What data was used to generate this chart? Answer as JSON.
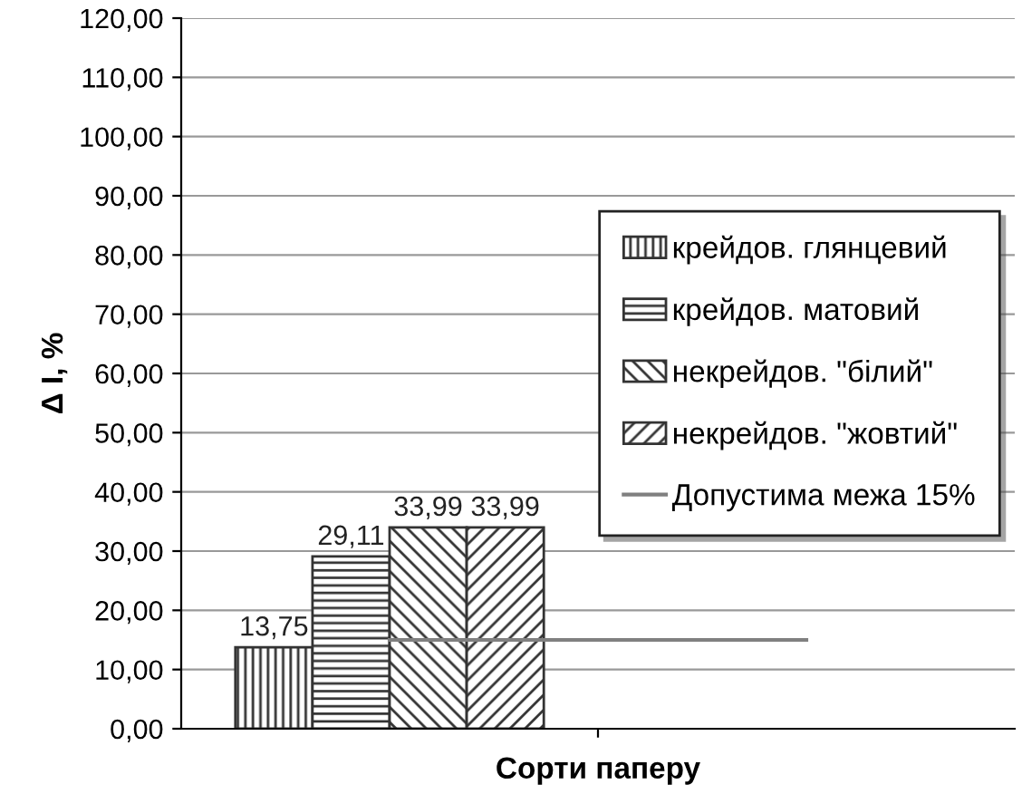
{
  "chart_data": {
    "type": "bar",
    "xlabel": "Сорти паперу",
    "ylabel": "Δ I, %",
    "categories": [
      null,
      null
    ],
    "series": [
      {
        "name": "крейдов. глянцевий",
        "color": "#333333",
        "values": [
          13.75,
          null
        ],
        "value_labels": [
          "13,75",
          null
        ]
      },
      {
        "name": "крейдов. матовий",
        "color": "#333333",
        "values": [
          29.11,
          null
        ],
        "value_labels": [
          "29,11",
          null
        ]
      },
      {
        "name": "некрейдов. \"білий\"",
        "color": "#333333",
        "values": [
          33.99,
          null
        ],
        "value_labels": [
          "33,99",
          null
        ]
      },
      {
        "name": "некрейдов. \"жовтий\"",
        "color": "#333333",
        "values": [
          33.99,
          null
        ],
        "value_labels": [
          "33,99",
          null
        ]
      }
    ],
    "ref_lines": [
      {
        "axis": "y",
        "value": 15,
        "label": "Допустима межа 15%",
        "color": "#808080",
        "line_style": "solid"
      }
    ],
    "ylim": [
      0,
      120
    ],
    "yticks": [
      {
        "value": 0,
        "label": "0,00"
      },
      {
        "value": 10,
        "label": "10,00"
      },
      {
        "value": 20,
        "label": "20,00"
      },
      {
        "value": 30,
        "label": "30,00"
      },
      {
        "value": 40,
        "label": "40,00"
      },
      {
        "value": 50,
        "label": "50,00"
      },
      {
        "value": 60,
        "label": "60,00"
      },
      {
        "value": 70,
        "label": "70,00"
      },
      {
        "value": 80,
        "label": "80,00"
      },
      {
        "value": 90,
        "label": "90,00"
      },
      {
        "value": 100,
        "label": "100,00"
      },
      {
        "value": 110,
        "label": "110,00"
      },
      {
        "value": 120,
        "label": "120,00"
      }
    ],
    "grid": "y",
    "legend": "right"
  }
}
